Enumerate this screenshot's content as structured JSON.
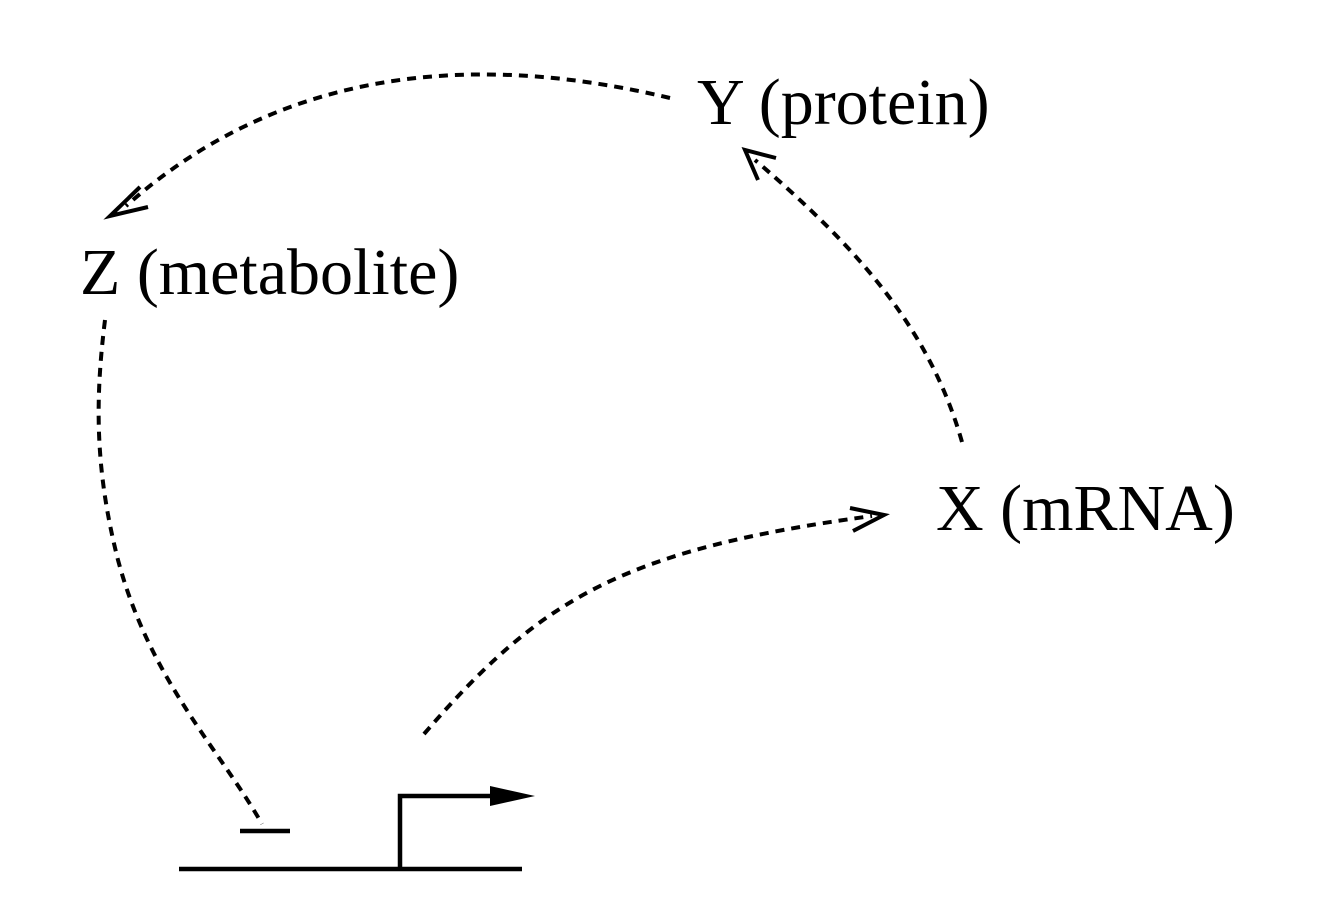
{
  "nodes": {
    "y": {
      "label": "Y (protein)"
    },
    "z": {
      "label": "Z (metabolite)"
    },
    "x": {
      "label": "X (mRNA)"
    }
  },
  "edges": [
    {
      "from": "promoter",
      "to": "x",
      "type": "activation"
    },
    {
      "from": "x",
      "to": "y",
      "type": "activation"
    },
    {
      "from": "y",
      "to": "z",
      "type": "activation"
    },
    {
      "from": "z",
      "to": "promoter",
      "type": "repression"
    }
  ],
  "style": {
    "line_color": "#000000",
    "background": "#ffffff"
  }
}
